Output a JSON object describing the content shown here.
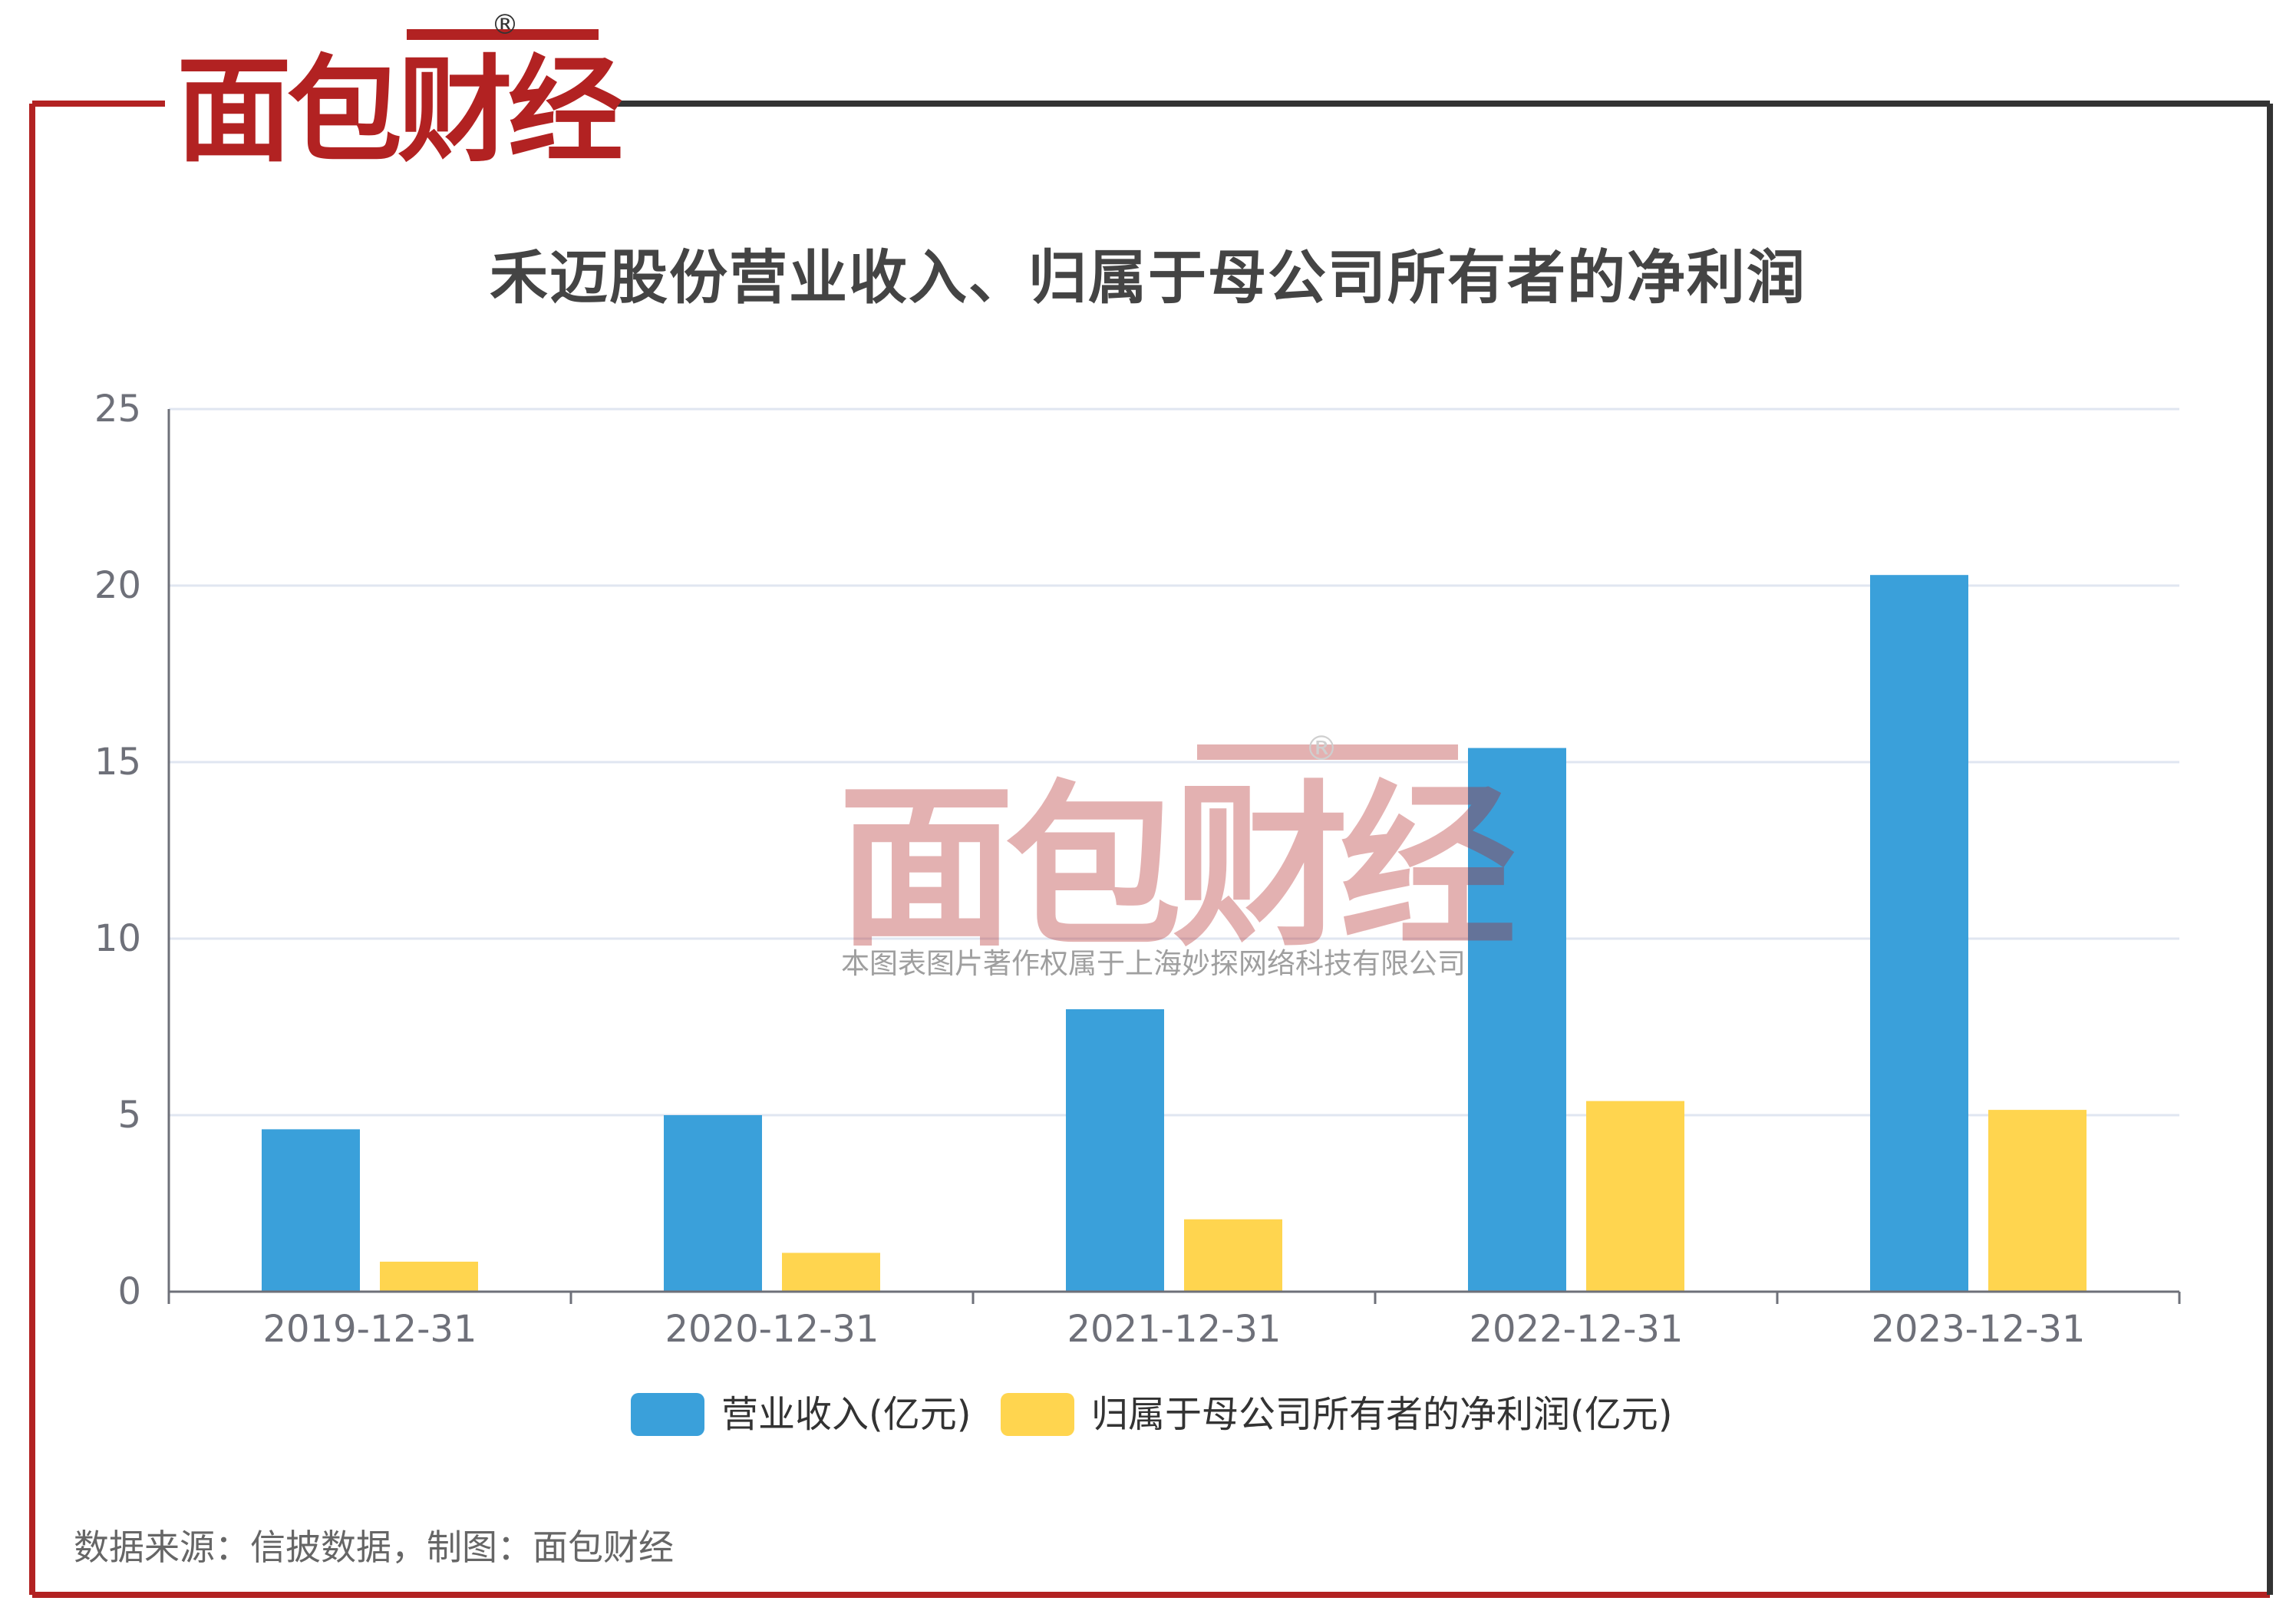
{
  "brand": {
    "logo_text": "面包财经",
    "registered_mark": "®",
    "frame_color": "#b22222",
    "frame_dark": "#333333"
  },
  "watermark": {
    "logo_text": "面包财经",
    "registered_mark": "®",
    "copyright": "本图表图片著作权属于上海妙探网络科技有限公司"
  },
  "title": "禾迈股份营业收入、归属于母公司所有者的净利润",
  "source": "数据来源：信披数据，制图：面包财经",
  "chart_data": {
    "type": "bar",
    "title": "禾迈股份营业收入、归属于母公司所有者的净利润",
    "categories": [
      "2019-12-31",
      "2020-12-31",
      "2021-12-31",
      "2022-12-31",
      "2023-12-31"
    ],
    "series": [
      {
        "name": "营业收入(亿元)",
        "color": "#3aa0da",
        "values": [
          4.6,
          5.0,
          8.0,
          15.4,
          20.3
        ]
      },
      {
        "name": "归属于母公司所有者的净利润(亿元)",
        "color": "#ffd54f",
        "values": [
          0.85,
          1.1,
          2.05,
          5.4,
          5.15
        ]
      }
    ],
    "y_ticks": [
      "0",
      "5",
      "10",
      "15",
      "20",
      "25"
    ],
    "ylim": [
      0,
      25
    ],
    "grid": true,
    "legend_position": "bottom-center"
  }
}
